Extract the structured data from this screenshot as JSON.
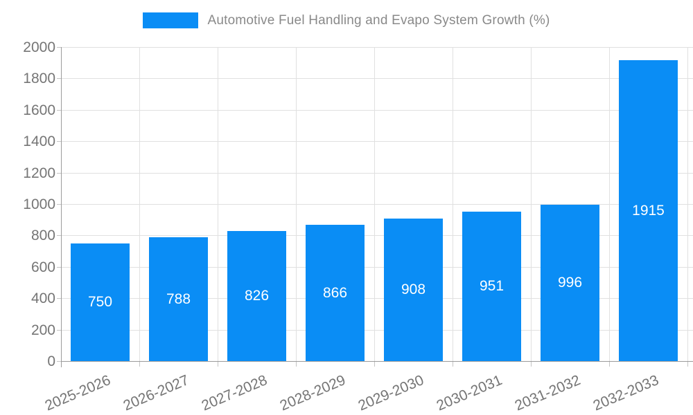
{
  "legend": {
    "label": "Automotive Fuel Handling and Evapo System Growth (%)"
  },
  "chart_data": {
    "type": "bar",
    "title": "Automotive Fuel Handling and Evapo System Growth (%)",
    "categories": [
      "2025-2026",
      "2026-2027",
      "2027-2028",
      "2028-2029",
      "2029-2030",
      "2030-2031",
      "2031-2032",
      "2032-2033"
    ],
    "values": [
      750,
      788,
      826,
      866,
      908,
      951,
      996,
      1915
    ],
    "value_labels": [
      "750",
      "788",
      "826",
      "866",
      "908",
      "951",
      "996",
      "1915"
    ],
    "xlabel": "",
    "ylabel": "",
    "ylim": [
      0,
      2000
    ],
    "ytick_step": 200,
    "yticks": [
      0,
      200,
      400,
      600,
      800,
      1000,
      1200,
      1400,
      1600,
      1800,
      2000
    ],
    "grid": true,
    "legend_position": "top-center",
    "bar_color": "#0a8df5",
    "value_label_color": "#ffffff",
    "grid_color": "#e0e0e0",
    "axis_color": "#9a9a9a",
    "tick_label_color": "#757575",
    "legend_text_color": "#898989"
  }
}
